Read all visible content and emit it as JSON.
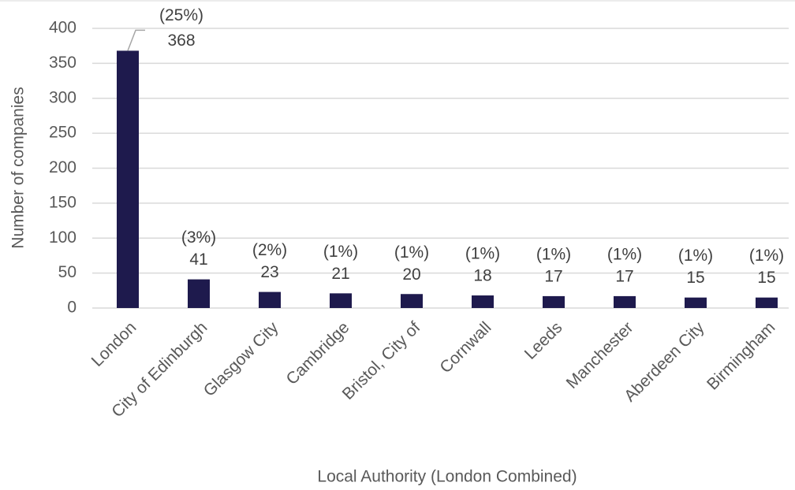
{
  "chart_data": {
    "type": "bar",
    "x_label": "Local Authority (London Combined)",
    "y_label": "Number of companies",
    "categories": [
      "London",
      "City of Edinburgh",
      "Glasgow City",
      "Cambridge",
      "Bristol, City of",
      "Cornwall",
      "Leeds",
      "Manchester",
      "Aberdeen City",
      "Birmingham"
    ],
    "values": [
      368,
      41,
      23,
      21,
      20,
      18,
      17,
      17,
      15,
      15
    ],
    "shares": [
      25,
      3,
      2,
      1,
      1,
      1,
      1,
      1,
      1,
      1
    ],
    "share_labels": [
      "(25%)",
      "(3%)",
      "(2%)",
      "(1%)",
      "(1%)",
      "(1%)",
      "(1%)",
      "(1%)",
      "(1%)",
      "(1%)"
    ],
    "color": "#1e1a4d",
    "ylim": [
      0,
      400
    ],
    "yticks": [
      0,
      50,
      100,
      150,
      200,
      250,
      300,
      350,
      400
    ],
    "grid": true
  }
}
